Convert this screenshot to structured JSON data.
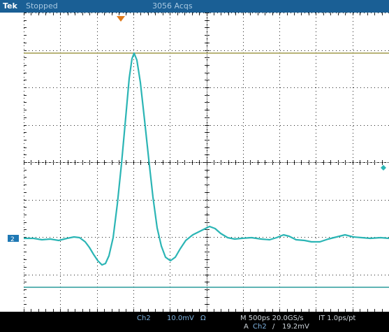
{
  "header": {
    "brand": "Tek",
    "run_state": "Stopped",
    "acquisitions": "3056 Acqs"
  },
  "footer": {
    "channel": "Ch2",
    "vertical_scale": "10.0mV",
    "input_impedance": "Ω",
    "timebase": "M 500ps 20.0GS/s",
    "interpolation": "IT 1.0ps/pt",
    "trigger_mode": "A",
    "trigger_source": "Ch2",
    "trigger_slope_glyph": "/",
    "trigger_level": "19.2mV"
  },
  "channel_marker": "2",
  "colors": {
    "header_bg": "#1a5f95",
    "header_text": "#a9c9e2",
    "trace": "#2bb5b5",
    "cursor_line": "#a09a4a",
    "grid": "#222222",
    "marker_bg": "#1e78b4",
    "trigger_marker": "#e07a1a",
    "footer_text": "#7fb3e0"
  },
  "graticule": {
    "divisions_x": 10,
    "divisions_y": 8,
    "minor_per_div": 5
  }
}
